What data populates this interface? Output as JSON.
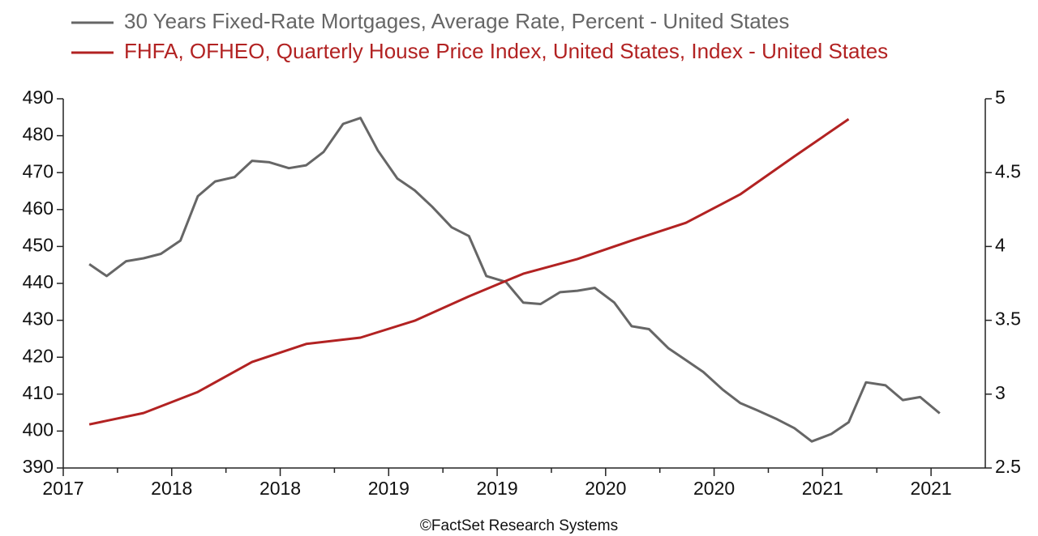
{
  "chart_data": {
    "type": "line",
    "source": "©FactSet Research Systems",
    "xlim": [
      2017.5,
      2021.75
    ],
    "xticks": [
      {
        "value": 2017.5,
        "label": "2017"
      },
      {
        "value": 2018.0,
        "label": "2018"
      },
      {
        "value": 2018.5,
        "label": "2018"
      },
      {
        "value": 2019.0,
        "label": "2019"
      },
      {
        "value": 2019.5,
        "label": "2019"
      },
      {
        "value": 2020.0,
        "label": "2020"
      },
      {
        "value": 2020.5,
        "label": "2020"
      },
      {
        "value": 2021.0,
        "label": "2021"
      },
      {
        "value": 2021.5,
        "label": "2021"
      }
    ],
    "xminor": [
      2017.75,
      2018.25,
      2018.75,
      2019.25,
      2019.75,
      2020.25,
      2020.75,
      2021.25
    ],
    "ylim": [
      390,
      490
    ],
    "yticks": [
      390,
      400,
      410,
      420,
      430,
      440,
      450,
      460,
      470,
      480,
      490
    ],
    "y2lim": [
      2.5,
      5
    ],
    "y2ticks": [
      2.5,
      3,
      3.5,
      4,
      4.5,
      5
    ],
    "series": [
      {
        "name": "30 Years Fixed-Rate Mortgages, Average Rate, Percent - United States",
        "color": "#666666",
        "axis": "y2",
        "x": [
          2017.62,
          2017.7,
          2017.79,
          2017.87,
          2017.95,
          2018.04,
          2018.12,
          2018.2,
          2018.29,
          2018.37,
          2018.45,
          2018.54,
          2018.62,
          2018.7,
          2018.79,
          2018.87,
          2018.95,
          2019.04,
          2019.12,
          2019.2,
          2019.29,
          2019.37,
          2019.45,
          2019.54,
          2019.62,
          2019.7,
          2019.79,
          2019.87,
          2019.95,
          2020.04,
          2020.12,
          2020.2,
          2020.29,
          2020.37,
          2020.45,
          2020.54,
          2020.62,
          2020.7,
          2020.79,
          2020.87,
          2020.95,
          2021.04,
          2021.12,
          2021.2,
          2021.29,
          2021.37,
          2021.45,
          2021.54
        ],
        "values": [
          3.88,
          3.8,
          3.9,
          3.92,
          3.95,
          4.04,
          4.34,
          4.44,
          4.47,
          4.58,
          4.57,
          4.53,
          4.55,
          4.64,
          4.83,
          4.87,
          4.65,
          4.46,
          4.38,
          4.27,
          4.13,
          4.07,
          3.8,
          3.76,
          3.62,
          3.61,
          3.69,
          3.7,
          3.72,
          3.62,
          3.46,
          3.44,
          3.31,
          3.23,
          3.15,
          3.03,
          2.94,
          2.89,
          2.83,
          2.77,
          2.68,
          2.73,
          2.81,
          3.08,
          3.06,
          2.96,
          2.98,
          2.87
        ]
      },
      {
        "name": "FHFA, OFHEO, Quarterly House Price Index, United States, Index - United States",
        "color": "#b22222",
        "x": [
          2017.62,
          2017.87,
          2018.12,
          2018.37,
          2018.62,
          2018.87,
          2019.12,
          2019.37,
          2019.62,
          2019.87,
          2020.12,
          2020.37,
          2020.62,
          2020.87,
          2021.12
        ],
        "values": [
          401.8,
          404.9,
          410.6,
          418.7,
          423.6,
          425.3,
          429.9,
          436.5,
          442.6,
          446.6,
          451.6,
          456.4,
          464.1,
          474.4,
          484.5
        ]
      }
    ]
  }
}
